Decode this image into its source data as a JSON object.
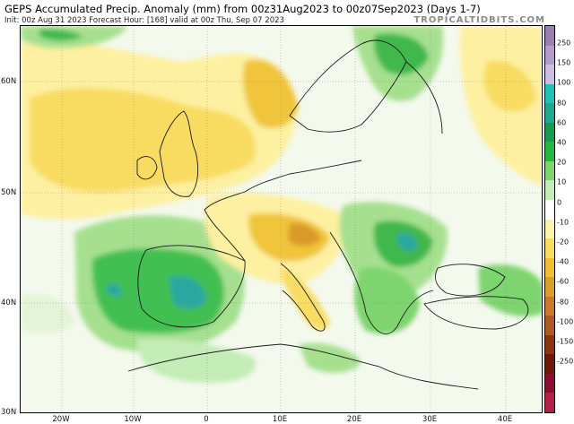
{
  "header": {
    "title": "GEPS Accumulated Precip. Anomaly (mm) from 00z31Aug2023 to 00z07Sep2023 (Days 1-7)",
    "subtitle": "Init: 00z Aug 31 2023   Forecast Hour: [168]   valid at 00z Thu, Sep 07 2023",
    "brand": "TROPICALTIDBITS.COM"
  },
  "axes": {
    "lat_labels": [
      "60N",
      "50N",
      "40N",
      "30N"
    ],
    "lon_labels": [
      "20W",
      "10W",
      "0",
      "10E",
      "20E",
      "30E",
      "40E"
    ]
  },
  "colorbar": {
    "labels": [
      "250",
      "150",
      "100",
      "80",
      "60",
      "40",
      "20",
      "10",
      "0",
      "-10",
      "-20",
      "-40",
      "-60",
      "-80",
      "-100",
      "-150",
      "-250"
    ],
    "colors": [
      "#9a7fb3",
      "#b49ccb",
      "#cdbde2",
      "#21c2b4",
      "#1fa98c",
      "#1a9a50",
      "#27b640",
      "#7ed46e",
      "#c4ecb7",
      "#ffffff",
      "#fdf3ad",
      "#f8dc62",
      "#f0bf33",
      "#d8a02a",
      "#c77a2b",
      "#ae5a24",
      "#8b3510",
      "#6e1a08",
      "#8b1030",
      "#b22045"
    ]
  }
}
